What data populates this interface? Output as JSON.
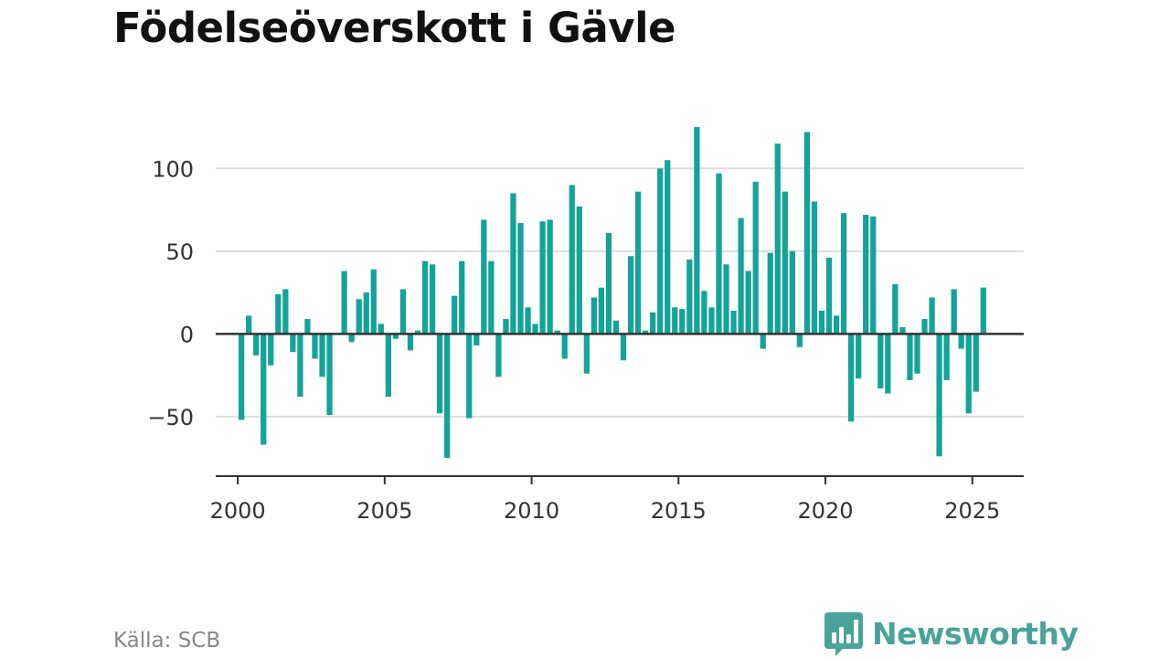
{
  "title": "Födelseöverskott i Gävle",
  "source": "Källa: SCB",
  "brand": {
    "name": "Newsworthy",
    "color": "#4aa39a",
    "icon": "bar-chart-speech-bubble-icon"
  },
  "chart_data": {
    "type": "bar",
    "title": "Födelseöverskott i Gävle",
    "xlabel": "",
    "ylabel": "",
    "bar_color": "#14a39a",
    "grid": true,
    "xlim": [
      1999.25,
      2026.75
    ],
    "ylim": [
      -86,
      130
    ],
    "yticks": [
      100,
      50,
      0,
      -50
    ],
    "xticks": [
      2000,
      2005,
      2010,
      2015,
      2020,
      2025
    ],
    "points": [
      {
        "x": 2000.125,
        "y": -52
      },
      {
        "x": 2000.375,
        "y": 11
      },
      {
        "x": 2000.625,
        "y": -13
      },
      {
        "x": 2000.875,
        "y": -67
      },
      {
        "x": 2001.125,
        "y": -19
      },
      {
        "x": 2001.375,
        "y": 24
      },
      {
        "x": 2001.625,
        "y": 27
      },
      {
        "x": 2001.875,
        "y": -11
      },
      {
        "x": 2002.125,
        "y": -38
      },
      {
        "x": 2002.375,
        "y": 9
      },
      {
        "x": 2002.625,
        "y": -15
      },
      {
        "x": 2002.875,
        "y": -26
      },
      {
        "x": 2003.125,
        "y": -49
      },
      {
        "x": 2003.375,
        "y": 0
      },
      {
        "x": 2003.625,
        "y": 38
      },
      {
        "x": 2003.875,
        "y": -5
      },
      {
        "x": 2004.125,
        "y": 21
      },
      {
        "x": 2004.375,
        "y": 25
      },
      {
        "x": 2004.625,
        "y": 39
      },
      {
        "x": 2004.875,
        "y": 6
      },
      {
        "x": 2005.125,
        "y": -38
      },
      {
        "x": 2005.375,
        "y": -3
      },
      {
        "x": 2005.625,
        "y": 27
      },
      {
        "x": 2005.875,
        "y": -10
      },
      {
        "x": 2006.125,
        "y": 2
      },
      {
        "x": 2006.375,
        "y": 44
      },
      {
        "x": 2006.625,
        "y": 42
      },
      {
        "x": 2006.875,
        "y": -48
      },
      {
        "x": 2007.125,
        "y": -75
      },
      {
        "x": 2007.375,
        "y": 23
      },
      {
        "x": 2007.625,
        "y": 44
      },
      {
        "x": 2007.875,
        "y": -51
      },
      {
        "x": 2008.125,
        "y": -7
      },
      {
        "x": 2008.375,
        "y": 69
      },
      {
        "x": 2008.625,
        "y": 44
      },
      {
        "x": 2008.875,
        "y": -26
      },
      {
        "x": 2009.125,
        "y": 9
      },
      {
        "x": 2009.375,
        "y": 85
      },
      {
        "x": 2009.625,
        "y": 67
      },
      {
        "x": 2009.875,
        "y": 16
      },
      {
        "x": 2010.125,
        "y": 6
      },
      {
        "x": 2010.375,
        "y": 68
      },
      {
        "x": 2010.625,
        "y": 69
      },
      {
        "x": 2010.875,
        "y": 2
      },
      {
        "x": 2011.125,
        "y": -15
      },
      {
        "x": 2011.375,
        "y": 90
      },
      {
        "x": 2011.625,
        "y": 77
      },
      {
        "x": 2011.875,
        "y": -24
      },
      {
        "x": 2012.125,
        "y": 22
      },
      {
        "x": 2012.375,
        "y": 28
      },
      {
        "x": 2012.625,
        "y": 61
      },
      {
        "x": 2012.875,
        "y": 8
      },
      {
        "x": 2013.125,
        "y": -16
      },
      {
        "x": 2013.375,
        "y": 47
      },
      {
        "x": 2013.625,
        "y": 86
      },
      {
        "x": 2013.875,
        "y": 2
      },
      {
        "x": 2014.125,
        "y": 13
      },
      {
        "x": 2014.375,
        "y": 100
      },
      {
        "x": 2014.625,
        "y": 105
      },
      {
        "x": 2014.875,
        "y": 16
      },
      {
        "x": 2015.125,
        "y": 15
      },
      {
        "x": 2015.375,
        "y": 45
      },
      {
        "x": 2015.625,
        "y": 125
      },
      {
        "x": 2015.875,
        "y": 26
      },
      {
        "x": 2016.125,
        "y": 16
      },
      {
        "x": 2016.375,
        "y": 97
      },
      {
        "x": 2016.625,
        "y": 42
      },
      {
        "x": 2016.875,
        "y": 14
      },
      {
        "x": 2017.125,
        "y": 70
      },
      {
        "x": 2017.375,
        "y": 38
      },
      {
        "x": 2017.625,
        "y": 92
      },
      {
        "x": 2017.875,
        "y": -9
      },
      {
        "x": 2018.125,
        "y": 49
      },
      {
        "x": 2018.375,
        "y": 115
      },
      {
        "x": 2018.625,
        "y": 86
      },
      {
        "x": 2018.875,
        "y": 50
      },
      {
        "x": 2019.125,
        "y": -8
      },
      {
        "x": 2019.375,
        "y": 122
      },
      {
        "x": 2019.625,
        "y": 80
      },
      {
        "x": 2019.875,
        "y": 14
      },
      {
        "x": 2020.125,
        "y": 46
      },
      {
        "x": 2020.375,
        "y": 11
      },
      {
        "x": 2020.625,
        "y": 73
      },
      {
        "x": 2020.875,
        "y": -53
      },
      {
        "x": 2021.125,
        "y": -27
      },
      {
        "x": 2021.375,
        "y": 72
      },
      {
        "x": 2021.625,
        "y": 71
      },
      {
        "x": 2021.875,
        "y": -33
      },
      {
        "x": 2022.125,
        "y": -36
      },
      {
        "x": 2022.375,
        "y": 30
      },
      {
        "x": 2022.625,
        "y": 4
      },
      {
        "x": 2022.875,
        "y": -28
      },
      {
        "x": 2023.125,
        "y": -24
      },
      {
        "x": 2023.375,
        "y": 9
      },
      {
        "x": 2023.625,
        "y": 22
      },
      {
        "x": 2023.875,
        "y": -74
      },
      {
        "x": 2024.125,
        "y": -28
      },
      {
        "x": 2024.375,
        "y": 27
      },
      {
        "x": 2024.625,
        "y": -9
      },
      {
        "x": 2024.875,
        "y": -48
      },
      {
        "x": 2025.125,
        "y": -35
      },
      {
        "x": 2025.375,
        "y": 28
      }
    ]
  }
}
